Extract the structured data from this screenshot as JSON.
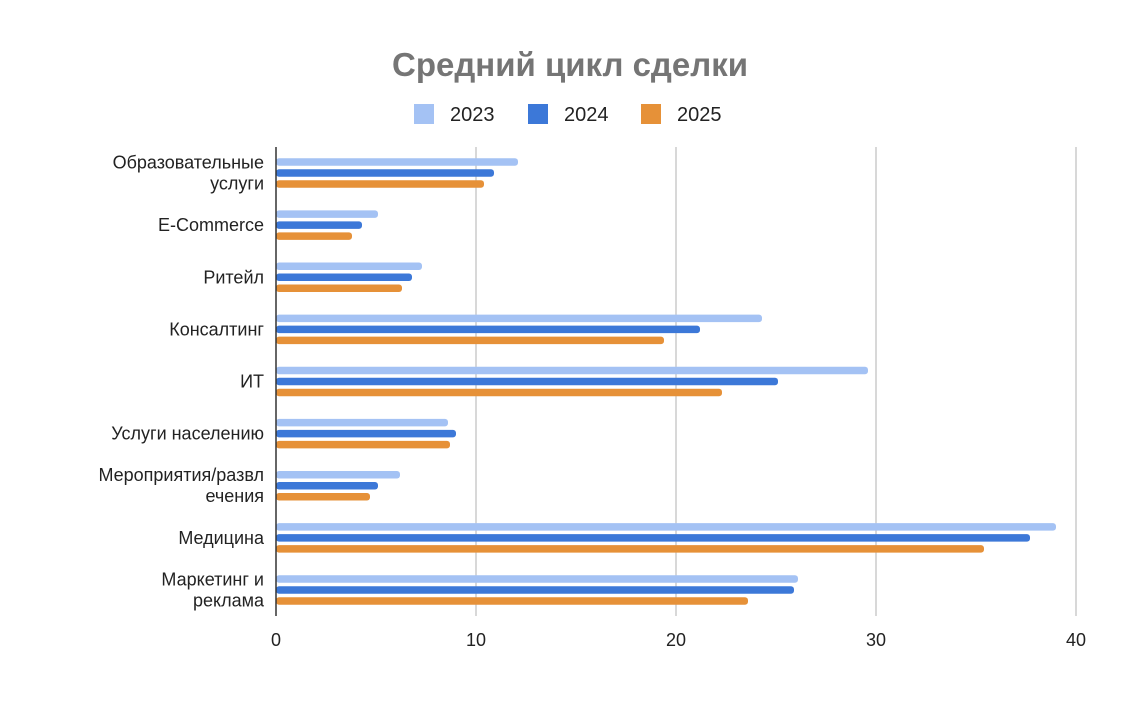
{
  "chart_data": {
    "type": "bar",
    "orientation": "horizontal",
    "title": "Средний цикл сделки",
    "xlabel": "",
    "ylabel": "",
    "xlim": [
      0,
      40
    ],
    "x_ticks": [
      0,
      10,
      20,
      30,
      40
    ],
    "grid": true,
    "legend_position": "top",
    "categories": [
      [
        "Образовательные",
        "услуги"
      ],
      [
        "E-Commerce"
      ],
      [
        "Ритейл"
      ],
      [
        "Консалтинг"
      ],
      [
        "ИТ"
      ],
      [
        "Услуги населению"
      ],
      [
        "Мероприятия/развл",
        "ечения"
      ],
      [
        "Медицина"
      ],
      [
        "Маркетинг и",
        "реклама"
      ]
    ],
    "series": [
      {
        "name": "2023",
        "color": "#a4c2f4",
        "values": [
          12.1,
          5.1,
          7.3,
          24.3,
          29.6,
          8.6,
          6.2,
          39.0,
          26.1
        ]
      },
      {
        "name": "2024",
        "color": "#3c78d8",
        "values": [
          10.9,
          4.3,
          6.8,
          21.2,
          25.1,
          9.0,
          5.1,
          37.7,
          25.9
        ]
      },
      {
        "name": "2025",
        "color": "#e69138",
        "values": [
          10.4,
          3.8,
          6.3,
          19.4,
          22.3,
          8.7,
          4.7,
          35.4,
          23.6
        ]
      }
    ]
  }
}
